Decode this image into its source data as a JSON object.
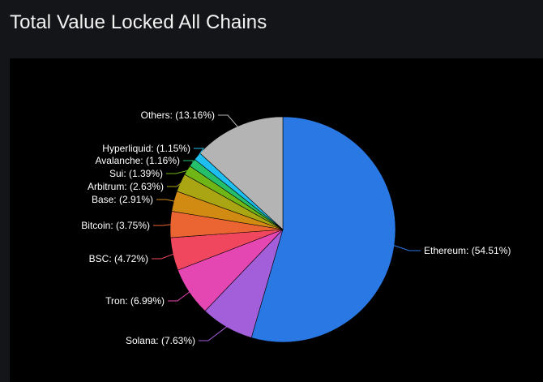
{
  "page": {
    "title": "Total Value Locked All Chains"
  },
  "chart_data": {
    "type": "pie",
    "title": "Total Value Locked All Chains",
    "slices": [
      {
        "name": "Ethereum",
        "value": 54.51,
        "label": "Ethereum: (54.51%)",
        "color": "#2a78e4"
      },
      {
        "name": "Solana",
        "value": 7.63,
        "label": "Solana: (7.63%)",
        "color": "#a25fd9"
      },
      {
        "name": "Tron",
        "value": 6.99,
        "label": "Tron: (6.99%)",
        "color": "#e447b2"
      },
      {
        "name": "BSC",
        "value": 4.72,
        "label": "BSC: (4.72%)",
        "color": "#f0475f"
      },
      {
        "name": "Bitcoin",
        "value": 3.75,
        "label": "Bitcoin: (3.75%)",
        "color": "#ea6532"
      },
      {
        "name": "Base",
        "value": 2.91,
        "label": "Base: (2.91%)",
        "color": "#d18a12"
      },
      {
        "name": "Arbitrum",
        "value": 2.63,
        "label": "Arbitrum: (2.63%)",
        "color": "#a9a513"
      },
      {
        "name": "Sui",
        "value": 1.39,
        "label": "Sui: (1.39%)",
        "color": "#6fb516"
      },
      {
        "name": "Avalanche",
        "value": 1.16,
        "label": "Avalanche: (1.16%)",
        "color": "#25bf6c"
      },
      {
        "name": "Hyperliquid",
        "value": 1.15,
        "label": "Hyperliquid: (1.15%)",
        "color": "#1fbef0"
      },
      {
        "name": "Others",
        "value": 13.16,
        "label": "Others: (13.16%)",
        "color": "#b4b4b4"
      }
    ]
  }
}
